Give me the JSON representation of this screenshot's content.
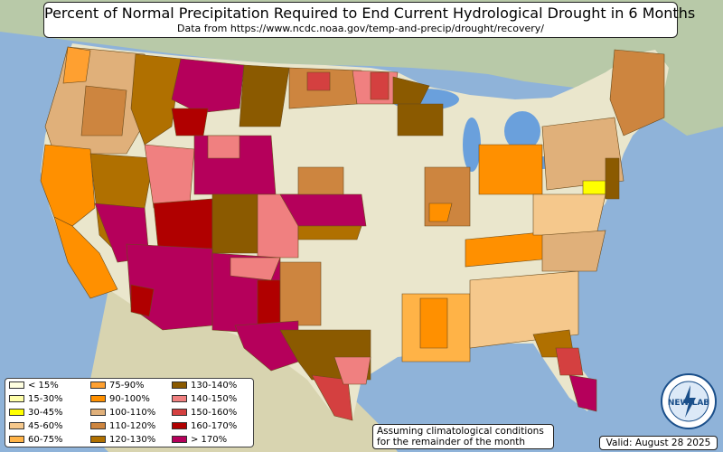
{
  "title": "Percent of Normal Precipitation Required to End Current Hydrological Drought in 6 Months",
  "subtitle": "Data from https://www.ncdc.noaa.gov/temp-and-precip/drought/recovery/",
  "note_line1": "Assuming climatological conditions",
  "note_line2": "for the remainder of the month",
  "valid": "Valid: August 28 2025",
  "logo_text": "NEW LAB",
  "legend": [
    {
      "label": "< 15%",
      "color": "#ffffe0"
    },
    {
      "label": "15-30%",
      "color": "#ffffaa"
    },
    {
      "label": "30-45%",
      "color": "#ffff00"
    },
    {
      "label": "45-60%",
      "color": "#f5c88c"
    },
    {
      "label": "60-75%",
      "color": "#ffb347"
    },
    {
      "label": "75-90%",
      "color": "#ffa030"
    },
    {
      "label": "90-100%",
      "color": "#ff9000"
    },
    {
      "label": "100-110%",
      "color": "#e0b07a"
    },
    {
      "label": "110-120%",
      "color": "#cd853f"
    },
    {
      "label": "120-130%",
      "color": "#b07000"
    },
    {
      "label": "130-140%",
      "color": "#8b5a00"
    },
    {
      "label": "140-150%",
      "color": "#f08080"
    },
    {
      "label": "150-160%",
      "color": "#d44040"
    },
    {
      "label": "160-170%",
      "color": "#b00000"
    },
    {
      "label": "> 170%",
      "color": "#b5005b"
    }
  ]
}
